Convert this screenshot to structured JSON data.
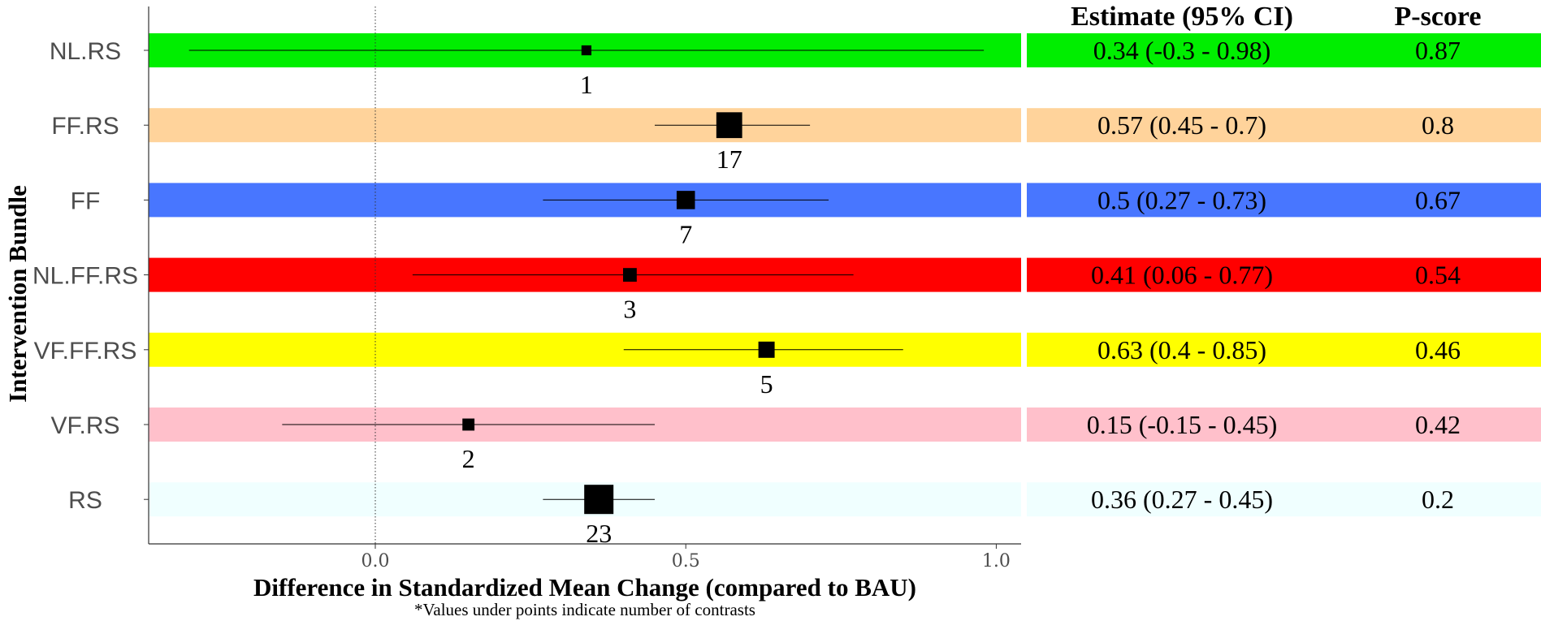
{
  "chart_data": {
    "type": "forest",
    "xlabel": "Difference in Standardized Mean Change (compared to BAU)",
    "ylabel": "Intervention Bundle",
    "note": "*Values under points indicate number of contrasts",
    "xlim": [
      -0.365,
      1.04
    ],
    "xticks": [
      0.0,
      0.5,
      1.0
    ],
    "xtick_labels": [
      "0.0",
      "0.5",
      "1.0"
    ],
    "reference_line": 0.0,
    "table_headers": {
      "estimate": "Estimate (95% CI)",
      "pscore": "P-score"
    },
    "rows": [
      {
        "label": "NL.RS",
        "estimate": 0.34,
        "lower": -0.3,
        "upper": 0.98,
        "n": "1",
        "ci_text": "0.34 (-0.3 - 0.98)",
        "pscore": "0.87",
        "color": "#00ee00"
      },
      {
        "label": "FF.RS",
        "estimate": 0.57,
        "lower": 0.45,
        "upper": 0.7,
        "n": "17",
        "ci_text": "0.57 (0.45 - 0.7)",
        "pscore": "0.8",
        "color": "#ffd39b"
      },
      {
        "label": "FF",
        "estimate": 0.5,
        "lower": 0.27,
        "upper": 0.73,
        "n": "7",
        "ci_text": "0.5 (0.27 - 0.73)",
        "pscore": "0.67",
        "color": "#4876ff"
      },
      {
        "label": "NL.FF.RS",
        "estimate": 0.41,
        "lower": 0.06,
        "upper": 0.77,
        "n": "3",
        "ci_text": "0.41 (0.06 - 0.77)",
        "pscore": "0.54",
        "color": "#ff0000"
      },
      {
        "label": "VF.FF.RS",
        "estimate": 0.63,
        "lower": 0.4,
        "upper": 0.85,
        "n": "5",
        "ci_text": "0.63 (0.4 - 0.85)",
        "pscore": "0.46",
        "color": "#ffff00"
      },
      {
        "label": "VF.RS",
        "estimate": 0.15,
        "lower": -0.15,
        "upper": 0.45,
        "n": "2",
        "ci_text": "0.15 (-0.15 - 0.45)",
        "pscore": "0.42",
        "color": "#ffc0cb"
      },
      {
        "label": "RS",
        "estimate": 0.36,
        "lower": 0.27,
        "upper": 0.45,
        "n": "23",
        "ci_text": "0.36 (0.27 - 0.45)",
        "pscore": "0.2",
        "color": "#f0ffff"
      }
    ]
  }
}
